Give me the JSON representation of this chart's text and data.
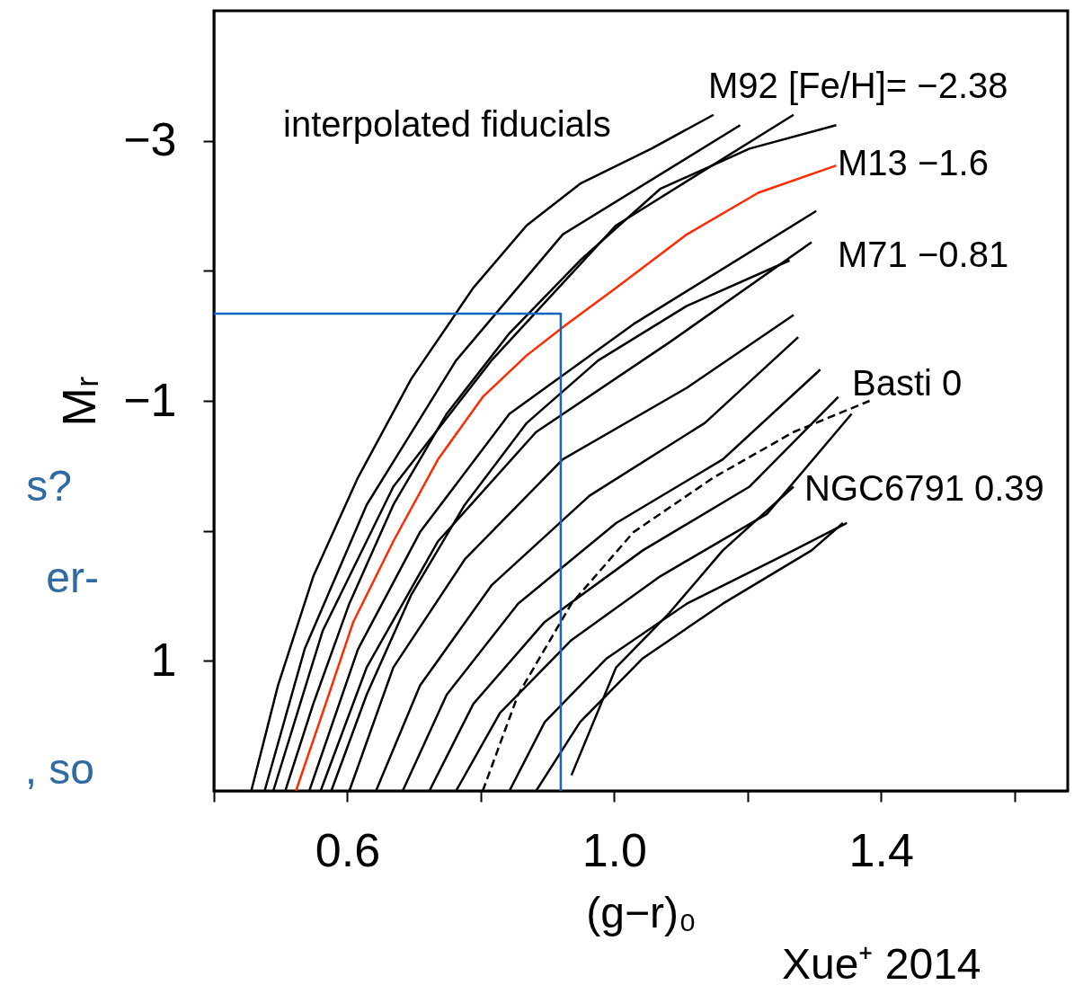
{
  "chart_data": {
    "type": "line",
    "xlabel": "(g−r)₀",
    "ylabel": "Mᵣ",
    "xlim": [
      0.4,
      1.68
    ],
    "ylim": [
      2.0,
      -4.0
    ],
    "xticks": [
      {
        "value": 0.4,
        "label": null
      },
      0.6,
      {
        "value": 0.8,
        "label": null
      },
      {
        "value": 1.0,
        "label": "1.0"
      },
      {
        "value": 1.2,
        "label": null
      },
      1.4,
      {
        "value": 1.6,
        "label": null
      }
    ],
    "yticks": [
      -3,
      {
        "value": -2,
        "label": null
      },
      -1,
      {
        "value": 0,
        "label": null
      },
      1
    ],
    "grid": false,
    "line_style": "solid",
    "marker": "none",
    "series": [
      {
        "color": "#000000",
        "x": [
          0.456,
          0.496,
          0.549,
          0.616,
          0.696,
          0.789,
          0.869,
          0.949,
          1.056,
          1.149
        ],
        "values": [
          2.0,
          1.19,
          0.35,
          -0.41,
          -1.17,
          -1.87,
          -2.35,
          -2.67,
          -2.94,
          -3.2
        ]
      },
      {
        "color": "#000000",
        "x": [
          0.476,
          0.536,
          0.629,
          0.763,
          0.923,
          1.189
        ],
        "values": [
          2.0,
          0.91,
          -0.2,
          -1.31,
          -2.28,
          -3.12
        ]
      },
      {
        "color": "#000000",
        "x": [
          0.489,
          0.563,
          0.669,
          0.816,
          1.003,
          1.269
        ],
        "values": [
          2.0,
          0.77,
          -0.34,
          -1.31,
          -2.35,
          -3.2
        ]
      },
      {
        "color": "#000000",
        "x": [
          0.507,
          0.549,
          0.603,
          0.669,
          0.749,
          0.843,
          0.949,
          1.069,
          1.203,
          1.333
        ],
        "values": [
          2.0,
          1.33,
          0.56,
          -0.2,
          -0.9,
          -1.52,
          -2.08,
          -2.63,
          -2.94,
          -3.12
        ]
      },
      {
        "color": "#000000",
        "x": [
          0.543,
          0.616,
          0.709,
          0.843,
          1.029,
          1.303
        ],
        "values": [
          2.0,
          0.91,
          0.01,
          -0.9,
          -1.59,
          -2.46
        ]
      },
      {
        "color": "#000000",
        "x": [
          0.56,
          0.629,
          0.736,
          0.883,
          1.083,
          1.296
        ],
        "values": [
          2.0,
          1.05,
          0.08,
          -0.76,
          -1.45,
          -2.22
        ]
      },
      {
        "color": "#000000",
        "x": [
          0.576,
          0.629,
          0.696,
          0.776,
          0.869,
          0.976,
          1.109,
          1.263
        ],
        "values": [
          2.0,
          1.26,
          0.49,
          -0.2,
          -0.83,
          -1.31,
          -1.73,
          -2.08
        ]
      },
      {
        "color": "#000000",
        "x": [
          0.603,
          0.669,
          0.776,
          0.923,
          1.109,
          1.269
        ],
        "values": [
          2.0,
          1.05,
          0.22,
          -0.55,
          -1.1,
          -1.66
        ]
      },
      {
        "color": "#000000",
        "x": [
          0.643,
          0.709,
          0.816,
          0.963,
          1.136,
          1.276
        ],
        "values": [
          2.0,
          1.19,
          0.42,
          -0.27,
          -0.83,
          -1.49
        ]
      },
      {
        "color": "#000000",
        "x": [
          0.683,
          0.749,
          0.856,
          1.003,
          1.163,
          1.309
        ],
        "values": [
          2.0,
          1.26,
          0.56,
          -0.06,
          -0.55,
          -1.24
        ]
      },
      {
        "color": "#000000",
        "x": [
          0.723,
          0.789,
          0.896,
          1.043,
          1.203,
          1.336
        ],
        "values": [
          2.0,
          1.33,
          0.7,
          0.15,
          -0.34,
          -1.03
        ]
      },
      {
        "color": "#000000",
        "x": [
          0.763,
          0.829,
          0.936,
          1.069,
          1.229,
          1.356
        ],
        "values": [
          2.0,
          1.4,
          0.84,
          0.35,
          -0.13,
          -0.9
        ]
      },
      {
        "color": "#000000",
        "line_style": "dashed",
        "x": [
          0.803,
          0.856,
          0.936,
          1.029,
          1.149,
          1.269,
          1.383
        ],
        "values": [
          2.0,
          1.26,
          0.56,
          0.01,
          -0.41,
          -0.76,
          -1.0
        ]
      },
      {
        "color": "#000000",
        "x": [
          0.843,
          0.896,
          0.989,
          1.109,
          1.269,
          1.349
        ],
        "values": [
          2.0,
          1.47,
          0.98,
          0.56,
          0.15,
          -0.06
        ]
      },
      {
        "color": "#000000",
        "x": [
          0.883,
          0.949,
          1.043,
          1.163,
          1.296,
          1.343
        ],
        "values": [
          2.0,
          1.47,
          0.98,
          0.56,
          0.15,
          -0.06
        ]
      },
      {
        "color": "#000000",
        "x": [
          0.936,
          1.003,
          1.083,
          1.163,
          1.269
        ],
        "values": [
          1.88,
          1.05,
          0.63,
          0.15,
          -0.34
        ]
      },
      {
        "color": "#ff2a00",
        "x": [
          0.523,
          0.563,
          0.609,
          0.669,
          0.736,
          0.803,
          0.869,
          0.929,
          1.003,
          1.109,
          1.216,
          1.333
        ],
        "values": [
          2.0,
          1.4,
          0.7,
          0.08,
          -0.55,
          -1.03,
          -1.35,
          -1.59,
          -1.87,
          -2.28,
          -2.6,
          -2.81
        ]
      },
      {
        "color": "#1565c0",
        "x": [
          0.4,
          0.92,
          0.92
        ],
        "values": [
          -1.67,
          -1.67,
          2.0
        ]
      }
    ],
    "annotations": [
      "interpolated fiducials",
      "M92 [Fe/H]= −2.38",
      "M13  −1.6",
      "M71  −0.81",
      "Basti   0",
      "NGC6791  0.39",
      "s?",
      "er-",
      ", so",
      "Xue⁺ 2014"
    ]
  }
}
